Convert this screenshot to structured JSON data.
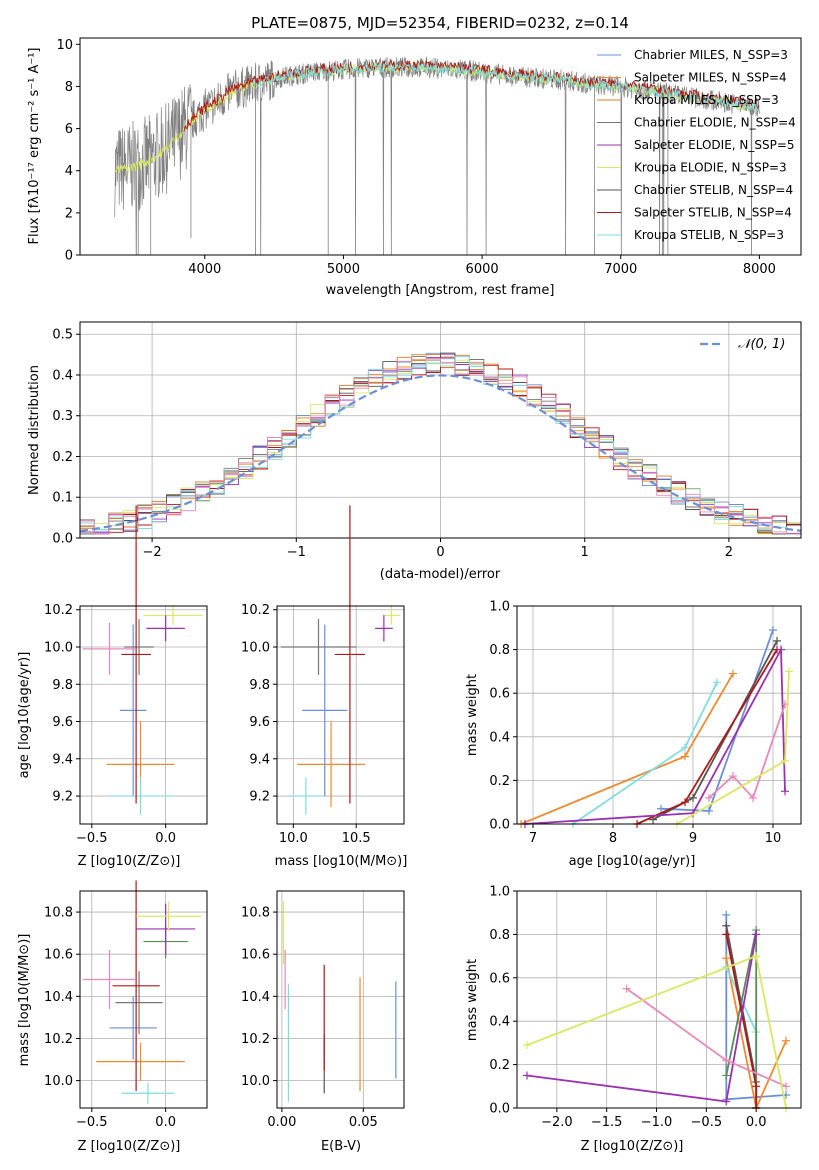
{
  "title": "PLATE=0875, MJD=52354, FIBERID=0232, z=0.14",
  "colors": {
    "Chabrier MILES": "#6a8fd8",
    "Salpeter MILES": "#f08a30",
    "Kroupa MILES": "#e07a20",
    "Chabrier ELODIE": "#777777",
    "Salpeter ELODIE": "#9b30b0",
    "Kroupa ELODIE": "#d8e860",
    "Chabrier STELIB": "#555555",
    "Salpeter STELIB": "#b01818",
    "Kroupa STELIB": "#80dde0",
    "pink": "#e888b8",
    "green": "#5a8a5a",
    "grid": "#b0b0b0",
    "normal": "#6a90d8"
  },
  "chart_data": [
    {
      "type": "line",
      "xlabel": "wavelength [Angstrom, rest frame]",
      "ylabel": "Flux [fλ10⁻¹⁷ erg cm⁻² s⁻¹ A⁻¹]",
      "xlim": [
        3100,
        8300
      ],
      "ylim": [
        0,
        10.3
      ],
      "xticks": [
        4000,
        5000,
        6000,
        7000,
        8000
      ],
      "yticks": [
        0,
        2,
        4,
        6,
        8,
        10
      ],
      "legend_position": "right",
      "legend": [
        "Chabrier MILES, N_SSP=3",
        "Salpeter MILES, N_SSP=4",
        "Kroupa MILES, N_SSP=3",
        "Chabrier ELODIE, N_SSP=4",
        "Salpeter ELODIE, N_SSP=5",
        "Kroupa ELODIE, N_SSP=3",
        "Chabrier STELIB, N_SSP=4",
        "Salpeter STELIB, N_SSP=4",
        "Kroupa STELIB, N_SSP=3"
      ],
      "continuum_x": [
        3350,
        3500,
        3600,
        3700,
        3800,
        3900,
        4000,
        4100,
        4200,
        4400,
        4600,
        4800,
        5000,
        5200,
        5400,
        5600,
        5800,
        6000,
        6200,
        6400,
        6600,
        6800,
        7000,
        7200,
        7400,
        7600,
        7800,
        8000
      ],
      "continuum_y": [
        4.0,
        4.2,
        4.5,
        4.9,
        5.6,
        6.3,
        6.9,
        7.3,
        7.8,
        8.2,
        8.5,
        8.7,
        8.8,
        8.9,
        8.9,
        8.9,
        8.8,
        8.7,
        8.5,
        8.4,
        8.3,
        8.1,
        8.0,
        7.8,
        7.6,
        7.4,
        7.2,
        7.0
      ]
    },
    {
      "type": "bar",
      "xlabel": "(data-model)/error",
      "ylabel": "Normed distribution",
      "xlim": [
        -2.5,
        2.5
      ],
      "ylim": [
        0,
        0.53
      ],
      "xticks": [
        -2,
        -1,
        0,
        1,
        2
      ],
      "yticks": [
        0.0,
        0.1,
        0.2,
        0.3,
        0.4,
        0.5
      ],
      "legend": [
        "𝒩(0, 1)"
      ],
      "legend_position": "top-right",
      "bin_width": 0.1
    },
    {
      "type": "scatter",
      "xlabel": "Z [log10(Z/Z⊙)]",
      "ylabel": "age [log10(age/yr)]",
      "xlim": [
        -0.58,
        0.28
      ],
      "ylim": [
        9.05,
        10.22
      ],
      "xticks": [
        -0.5,
        0.0
      ],
      "yticks": [
        9.2,
        9.4,
        9.6,
        9.8,
        10.0,
        10.2
      ],
      "points": [
        {
          "series": "Chabrier MILES",
          "x": -0.22,
          "y": 9.66,
          "xerr": 0.09,
          "yerr": 0.46
        },
        {
          "series": "Salpeter MILES",
          "x": -0.17,
          "y": 9.37,
          "xerr": 0.23,
          "yerr": 0.23
        },
        {
          "series": "Kroupa STELIB",
          "x": -0.17,
          "y": 9.2,
          "xerr": 0.22,
          "yerr": 0.1
        },
        {
          "series": "Chabrier ELODIE",
          "x": -0.18,
          "y": 10.0,
          "xerr": 0.1,
          "yerr": 0.15
        },
        {
          "series": "Salpeter STELIB",
          "x": -0.2,
          "y": 9.96,
          "xerr": 0.1,
          "yerr": 0.8
        },
        {
          "series": "pink",
          "x": -0.38,
          "y": 9.99,
          "xerr": 0.18,
          "yerr": 0.14
        },
        {
          "series": "Kroupa ELODIE",
          "x": 0.05,
          "y": 10.17,
          "xerr": 0.2,
          "yerr": 0.05
        },
        {
          "series": "Salpeter ELODIE",
          "x": 0.0,
          "y": 10.1,
          "xerr": 0.13,
          "yerr": 0.07
        }
      ]
    },
    {
      "type": "scatter",
      "xlabel": "mass [log10(M/M⊙)]",
      "ylabel": "",
      "xlim": [
        9.87,
        10.88
      ],
      "ylim": [
        9.05,
        10.22
      ],
      "xticks": [
        10.0,
        10.5
      ],
      "yticks": [
        9.2,
        9.4,
        9.6,
        9.8,
        10.0,
        10.2
      ],
      "points": [
        {
          "series": "Kroupa STELIB",
          "x": 10.1,
          "y": 9.2,
          "xerr": 0.13,
          "yerr": 0.1
        },
        {
          "series": "Salpeter MILES",
          "x": 10.3,
          "y": 9.37,
          "xerr": 0.27,
          "yerr": 0.23
        },
        {
          "series": "Chabrier MILES",
          "x": 10.25,
          "y": 9.66,
          "xerr": 0.18,
          "yerr": 0.46
        },
        {
          "series": "Chabrier ELODIE",
          "x": 10.2,
          "y": 10.0,
          "xerr": 0.3,
          "yerr": 0.15
        },
        {
          "series": "Salpeter STELIB",
          "x": 10.45,
          "y": 9.96,
          "xerr": 0.12,
          "yerr": 0.8
        },
        {
          "series": "Kroupa ELODIE",
          "x": 10.78,
          "y": 10.17,
          "xerr": 0.07,
          "yerr": 0.05
        },
        {
          "series": "Salpeter ELODIE",
          "x": 10.72,
          "y": 10.1,
          "xerr": 0.07,
          "yerr": 0.07
        }
      ]
    },
    {
      "type": "line",
      "xlabel": "age [log10(age/yr)]",
      "ylabel": "mass weight",
      "xlim": [
        6.8,
        10.35
      ],
      "ylim": [
        0,
        1.0
      ],
      "xticks": [
        7,
        8,
        9,
        10
      ],
      "yticks": [
        0.0,
        0.2,
        0.4,
        0.6,
        0.8,
        1.0
      ],
      "series": [
        {
          "name": "Chabrier MILES",
          "x": [
            8.6,
            9.2,
            10.0
          ],
          "y": [
            0.07,
            0.06,
            0.89
          ]
        },
        {
          "name": "Salpeter MILES",
          "x": [
            6.85,
            8.9,
            9.5
          ],
          "y": [
            0.0,
            0.31,
            0.69
          ]
        },
        {
          "name": "Kroupa STELIB",
          "x": [
            7.5,
            8.9,
            9.3
          ],
          "y": [
            0.0,
            0.35,
            0.65
          ]
        },
        {
          "name": "Chabrier STELIB",
          "x": [
            8.5,
            9.0,
            10.05
          ],
          "y": [
            0.02,
            0.12,
            0.84
          ]
        },
        {
          "name": "Salpeter STELIB",
          "x": [
            8.3,
            8.9,
            10.05
          ],
          "y": [
            0.0,
            0.1,
            0.8
          ]
        },
        {
          "name": "Salpeter ELODIE",
          "x": [
            6.9,
            9.0,
            10.1,
            10.15
          ],
          "y": [
            0.0,
            0.05,
            0.8,
            0.15
          ]
        },
        {
          "name": "pink",
          "x": [
            9.2,
            9.5,
            9.75,
            10.15
          ],
          "y": [
            0.12,
            0.22,
            0.12,
            0.55
          ]
        },
        {
          "name": "Kroupa ELODIE",
          "x": [
            8.8,
            10.15,
            10.2
          ],
          "y": [
            0.0,
            0.29,
            0.7
          ]
        }
      ]
    },
    {
      "type": "scatter",
      "xlabel": "Z [log10(Z/Z⊙)]",
      "ylabel": "mass [log10(M/M⊙)]",
      "xlim": [
        -0.58,
        0.28
      ],
      "ylim": [
        9.87,
        10.9
      ],
      "xticks": [
        -0.5,
        0.0
      ],
      "yticks": [
        10.0,
        10.2,
        10.4,
        10.6,
        10.8
      ],
      "points": [
        {
          "series": "Kroupa STELIB",
          "x": -0.12,
          "y": 9.94,
          "xerr": 0.18,
          "yerr": 0.05
        },
        {
          "series": "Salpeter MILES",
          "x": -0.17,
          "y": 10.09,
          "xerr": 0.3,
          "yerr": 0.09
        },
        {
          "series": "Chabrier MILES",
          "x": -0.22,
          "y": 10.25,
          "xerr": 0.16,
          "yerr": 0.15
        },
        {
          "series": "Chabrier ELODIE",
          "x": -0.18,
          "y": 10.37,
          "xerr": 0.16,
          "yerr": 0.15
        },
        {
          "series": "Salpeter STELIB",
          "x": -0.2,
          "y": 10.45,
          "xerr": 0.16,
          "yerr": 0.5
        },
        {
          "series": "pink",
          "x": -0.38,
          "y": 10.48,
          "xerr": 0.18,
          "yerr": 0.14
        },
        {
          "series": "green",
          "x": 0.0,
          "y": 10.66,
          "xerr": 0.15,
          "yerr": 0.08
        },
        {
          "series": "Salpeter ELODIE",
          "x": 0.0,
          "y": 10.72,
          "xerr": 0.2,
          "yerr": 0.12
        },
        {
          "series": "Kroupa ELODIE",
          "x": 0.02,
          "y": 10.78,
          "xerr": 0.22,
          "yerr": 0.07
        }
      ]
    },
    {
      "type": "scatter",
      "xlabel": "E(B-V)",
      "ylabel": "",
      "xlim": [
        -0.003,
        0.075
      ],
      "ylim": [
        9.87,
        10.9
      ],
      "xticks": [
        0.0,
        0.05
      ],
      "yticks": [
        10.0,
        10.2,
        10.4,
        10.6,
        10.8
      ],
      "points": [
        {
          "series": "Kroupa ELODIE",
          "x": 0.001,
          "y": 10.7,
          "yerr": 0.15
        },
        {
          "series": "pink",
          "x": 0.002,
          "y": 10.48,
          "yerr": 0.14
        },
        {
          "series": "Kroupa STELIB",
          "x": 0.004,
          "y": 10.18,
          "yerr": 0.28
        },
        {
          "series": "Chabrier STELIB",
          "x": 0.026,
          "y": 10.08,
          "yerr": 0.14
        },
        {
          "series": "Salpeter STELIB",
          "x": 0.026,
          "y": 10.3,
          "yerr": 0.25
        },
        {
          "series": "Salpeter MILES",
          "x": 0.048,
          "y": 10.22,
          "yerr": 0.27
        },
        {
          "series": "Chabrier MILES",
          "x": 0.07,
          "y": 10.24,
          "yerr": 0.23
        }
      ]
    },
    {
      "type": "line",
      "xlabel": "Z [log10(Z/Z⊙)]",
      "ylabel": "mass weight",
      "xlim": [
        -2.4,
        0.45
      ],
      "ylim": [
        0,
        1.0
      ],
      "xticks": [
        -2.0,
        -1.5,
        -1.0,
        -0.5,
        0.0
      ],
      "yticks": [
        0.0,
        0.2,
        0.4,
        0.6,
        0.8,
        1.0
      ],
      "series": [
        {
          "name": "Chabrier MILES",
          "x": [
            -0.3,
            -0.3,
            0.3
          ],
          "y": [
            0.89,
            0.04,
            0.06
          ]
        },
        {
          "name": "Salpeter MILES",
          "x": [
            -0.3,
            0.0,
            0.3
          ],
          "y": [
            0.69,
            0.0,
            0.31
          ]
        },
        {
          "name": "Kroupa STELIB",
          "x": [
            -0.3,
            0.0,
            0.0
          ],
          "y": [
            0.65,
            0.35,
            0.0
          ]
        },
        {
          "name": "Chabrier STELIB",
          "x": [
            -0.3,
            0.0,
            0.0
          ],
          "y": [
            0.84,
            0.12,
            0.0
          ]
        },
        {
          "name": "green",
          "x": [
            -0.3,
            0.0,
            0.0
          ],
          "y": [
            0.15,
            0.82,
            0.0
          ]
        },
        {
          "name": "Salpeter STELIB",
          "x": [
            -0.3,
            0.0,
            0.0
          ],
          "y": [
            0.8,
            0.1,
            0.0
          ]
        },
        {
          "name": "Salpeter ELODIE",
          "x": [
            -2.3,
            -0.3,
            0.0
          ],
          "y": [
            0.15,
            0.03,
            0.8
          ]
        },
        {
          "name": "pink",
          "x": [
            -1.3,
            -0.3,
            0.3
          ],
          "y": [
            0.55,
            0.22,
            0.1
          ]
        },
        {
          "name": "Kroupa ELODIE",
          "x": [
            -2.3,
            0.0,
            0.3
          ],
          "y": [
            0.29,
            0.7,
            0.0
          ]
        }
      ]
    }
  ]
}
